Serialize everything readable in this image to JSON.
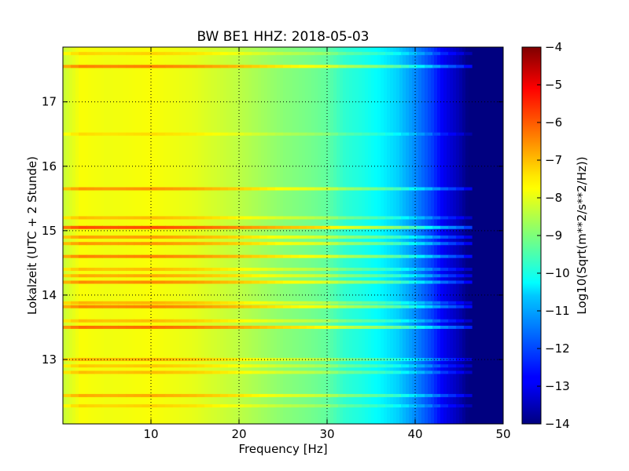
{
  "chart_data": {
    "type": "heatmap",
    "title": "BW BE1 HHZ: 2018-05-03",
    "xlabel": "Frequency [Hz]",
    "ylabel": "Lokalzeit (UTC + 2 Stunde)",
    "xlim": [
      0,
      50
    ],
    "ylim": [
      17.85,
      12.0
    ],
    "xticks": [
      10,
      20,
      30,
      40,
      50
    ],
    "yticks": [
      13,
      14,
      15,
      16,
      17
    ],
    "grid": true,
    "colormap": "jet",
    "colorbar": {
      "label": "Log10(Sqrt(m**2/s**2/Hz))",
      "range": [
        -14,
        -4
      ],
      "ticks": [
        -4,
        -5,
        -6,
        -7,
        -8,
        -9,
        -10,
        -11,
        -12,
        -13,
        -14
      ]
    },
    "frequency_profile": {
      "frequency_hz": [
        0,
        2,
        5,
        10,
        15,
        20,
        25,
        28,
        30,
        32,
        34,
        36,
        38,
        40,
        42,
        43,
        45,
        46,
        50
      ],
      "log_psd": [
        -8.3,
        -7.8,
        -7.9,
        -7.8,
        -8.0,
        -8.4,
        -8.9,
        -9.1,
        -9.3,
        -9.8,
        -10.0,
        -10.3,
        -10.7,
        -11.4,
        -12.2,
        -12.8,
        -13.5,
        -14.0,
        -14.0
      ]
    },
    "high_noise_bands": [
      {
        "time_h": 12.28,
        "offset": 0.5
      },
      {
        "time_h": 12.44,
        "offset": 0.9
      },
      {
        "time_h": 12.8,
        "offset": 0.7
      },
      {
        "time_h": 12.9,
        "offset": 0.6
      },
      {
        "time_h": 13.0,
        "offset": 0.8
      },
      {
        "time_h": 13.5,
        "offset": 1.5
      },
      {
        "time_h": 13.6,
        "offset": 0.7
      },
      {
        "time_h": 13.82,
        "offset": 1.3
      },
      {
        "time_h": 13.88,
        "offset": 0.8
      },
      {
        "time_h": 14.2,
        "offset": 1.2
      },
      {
        "time_h": 14.3,
        "offset": 0.9
      },
      {
        "time_h": 14.4,
        "offset": 0.7
      },
      {
        "time_h": 14.6,
        "offset": 1.3
      },
      {
        "time_h": 14.8,
        "offset": 1.1
      },
      {
        "time_h": 14.9,
        "offset": 1.0
      },
      {
        "time_h": 15.05,
        "offset": 1.8
      },
      {
        "time_h": 15.2,
        "offset": 0.7
      },
      {
        "time_h": 15.65,
        "offset": 1.1
      },
      {
        "time_h": 16.5,
        "offset": 0.4
      },
      {
        "time_h": 17.55,
        "offset": 1.3
      },
      {
        "time_h": 17.75,
        "offset": 0.5
      }
    ]
  }
}
